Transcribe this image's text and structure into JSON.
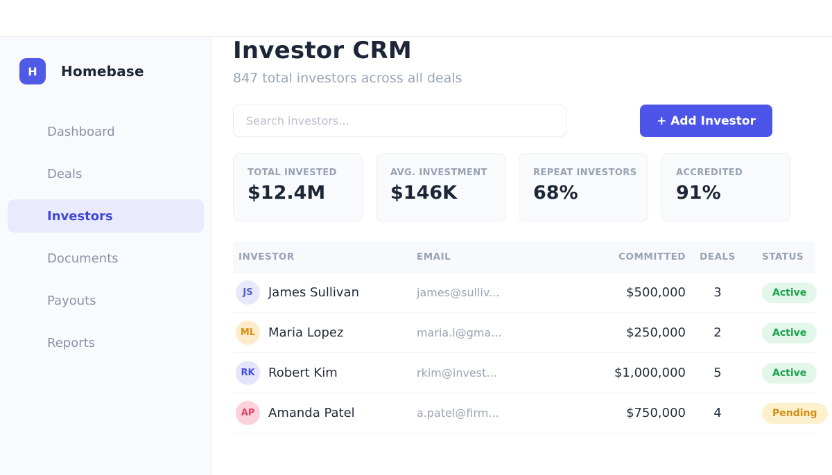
{
  "brand": {
    "name": "Homebase",
    "logo_letter": "H"
  },
  "sidebar": {
    "items": [
      {
        "label": "Dashboard",
        "active": false
      },
      {
        "label": "Deals",
        "active": false
      },
      {
        "label": "Investors",
        "active": true
      },
      {
        "label": "Documents",
        "active": false
      },
      {
        "label": "Payouts",
        "active": false
      },
      {
        "label": "Reports",
        "active": false
      }
    ]
  },
  "header": {
    "title": "Investor CRM",
    "subtitle": "847 total investors across all deals"
  },
  "search": {
    "placeholder": "Search investors..."
  },
  "actions": {
    "add_investor_label": "+ Add Investor"
  },
  "stats": [
    {
      "label": "TOTAL INVESTED",
      "value": "$12.4M"
    },
    {
      "label": "AVG. INVESTMENT",
      "value": "$146K"
    },
    {
      "label": "REPEAT INVESTORS",
      "value": "68%"
    },
    {
      "label": "ACCREDITED",
      "value": "91%"
    }
  ],
  "table": {
    "columns": [
      "INVESTOR",
      "EMAIL",
      "COMMITTED",
      "DEALS",
      "STATUS"
    ],
    "rows": [
      {
        "initials": "JS",
        "name": "James Sullivan",
        "email": "james@sulliv...",
        "committed": "$500,000",
        "deals": "3",
        "status": "Active",
        "avatar_bg": "#e7e9fb",
        "avatar_fg": "#4f56d3",
        "status_bg": "#e2f6e9",
        "status_fg": "#1ba24b"
      },
      {
        "initials": "ML",
        "name": "Maria Lopez",
        "email": "maria.l@gma...",
        "committed": "$250,000",
        "deals": "2",
        "status": "Active",
        "avatar_bg": "#fdeccb",
        "avatar_fg": "#d98f0f",
        "status_bg": "#e2f6e9",
        "status_fg": "#1ba24b"
      },
      {
        "initials": "RK",
        "name": "Robert Kim",
        "email": "rkim@invest...",
        "committed": "$1,000,000",
        "deals": "5",
        "status": "Active",
        "avatar_bg": "#e4e5fb",
        "avatar_fg": "#4350de",
        "status_bg": "#e2f6e9",
        "status_fg": "#1ba24b"
      },
      {
        "initials": "AP",
        "name": "Amanda Patel",
        "email": "a.patel@firm...",
        "committed": "$750,000",
        "deals": "4",
        "status": "Pending",
        "avatar_bg": "#fbd2dc",
        "avatar_fg": "#e0456b",
        "status_bg": "#fcf0cd",
        "status_fg": "#d28e12"
      }
    ]
  },
  "colors": {
    "accent": "#4c55e8",
    "logo_bg": "#4f5be7",
    "active_nav_bg": "#e9eafb",
    "active_nav_fg": "#4046d8",
    "status_active_bg": "#e2f6e9",
    "status_active_fg": "#1ba24b",
    "status_pending_bg": "#fcf0cd",
    "status_pending_fg": "#d28e12"
  }
}
